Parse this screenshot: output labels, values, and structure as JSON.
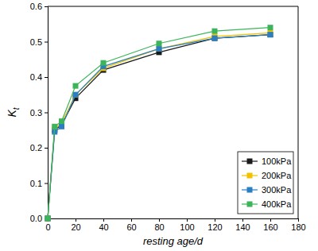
{
  "chart_data": {
    "type": "line",
    "x_label": "resting age/d",
    "y_label": "Kt",
    "x": [
      0,
      5,
      10,
      20,
      40,
      80,
      120,
      160
    ],
    "series": [
      {
        "name": "100kPa",
        "color": "#1a1a1a",
        "marker": "square",
        "line_style": "solid",
        "values": [
          0,
          0.25,
          0.265,
          0.34,
          0.42,
          0.47,
          0.51,
          0.52
        ]
      },
      {
        "name": "200kPa",
        "color": "#f2c200",
        "marker": "square",
        "line_style": "solid",
        "values": [
          0,
          0.255,
          0.27,
          0.35,
          0.425,
          0.48,
          0.515,
          0.525
        ]
      },
      {
        "name": "300kPa",
        "color": "#2a7fc4",
        "marker": "square",
        "line_style": "solid",
        "values": [
          0,
          0.245,
          0.26,
          0.35,
          0.43,
          0.48,
          0.51,
          0.52
        ]
      },
      {
        "name": "400kPa",
        "color": "#3cb45a",
        "marker": "square",
        "line_style": "solid",
        "values": [
          0,
          0.26,
          0.275,
          0.375,
          0.44,
          0.495,
          0.53,
          0.54
        ]
      }
    ],
    "xlim": [
      0,
      180
    ],
    "xticks": [
      0,
      20,
      40,
      60,
      80,
      100,
      120,
      140,
      160,
      180
    ],
    "ylim": [
      0,
      0.6
    ],
    "yticks": [
      {
        "value": 0,
        "label": "0.0"
      },
      0.1,
      0.2,
      0.3,
      0.4,
      0.5,
      0.6
    ],
    "grid": false,
    "legend": "lower right"
  }
}
